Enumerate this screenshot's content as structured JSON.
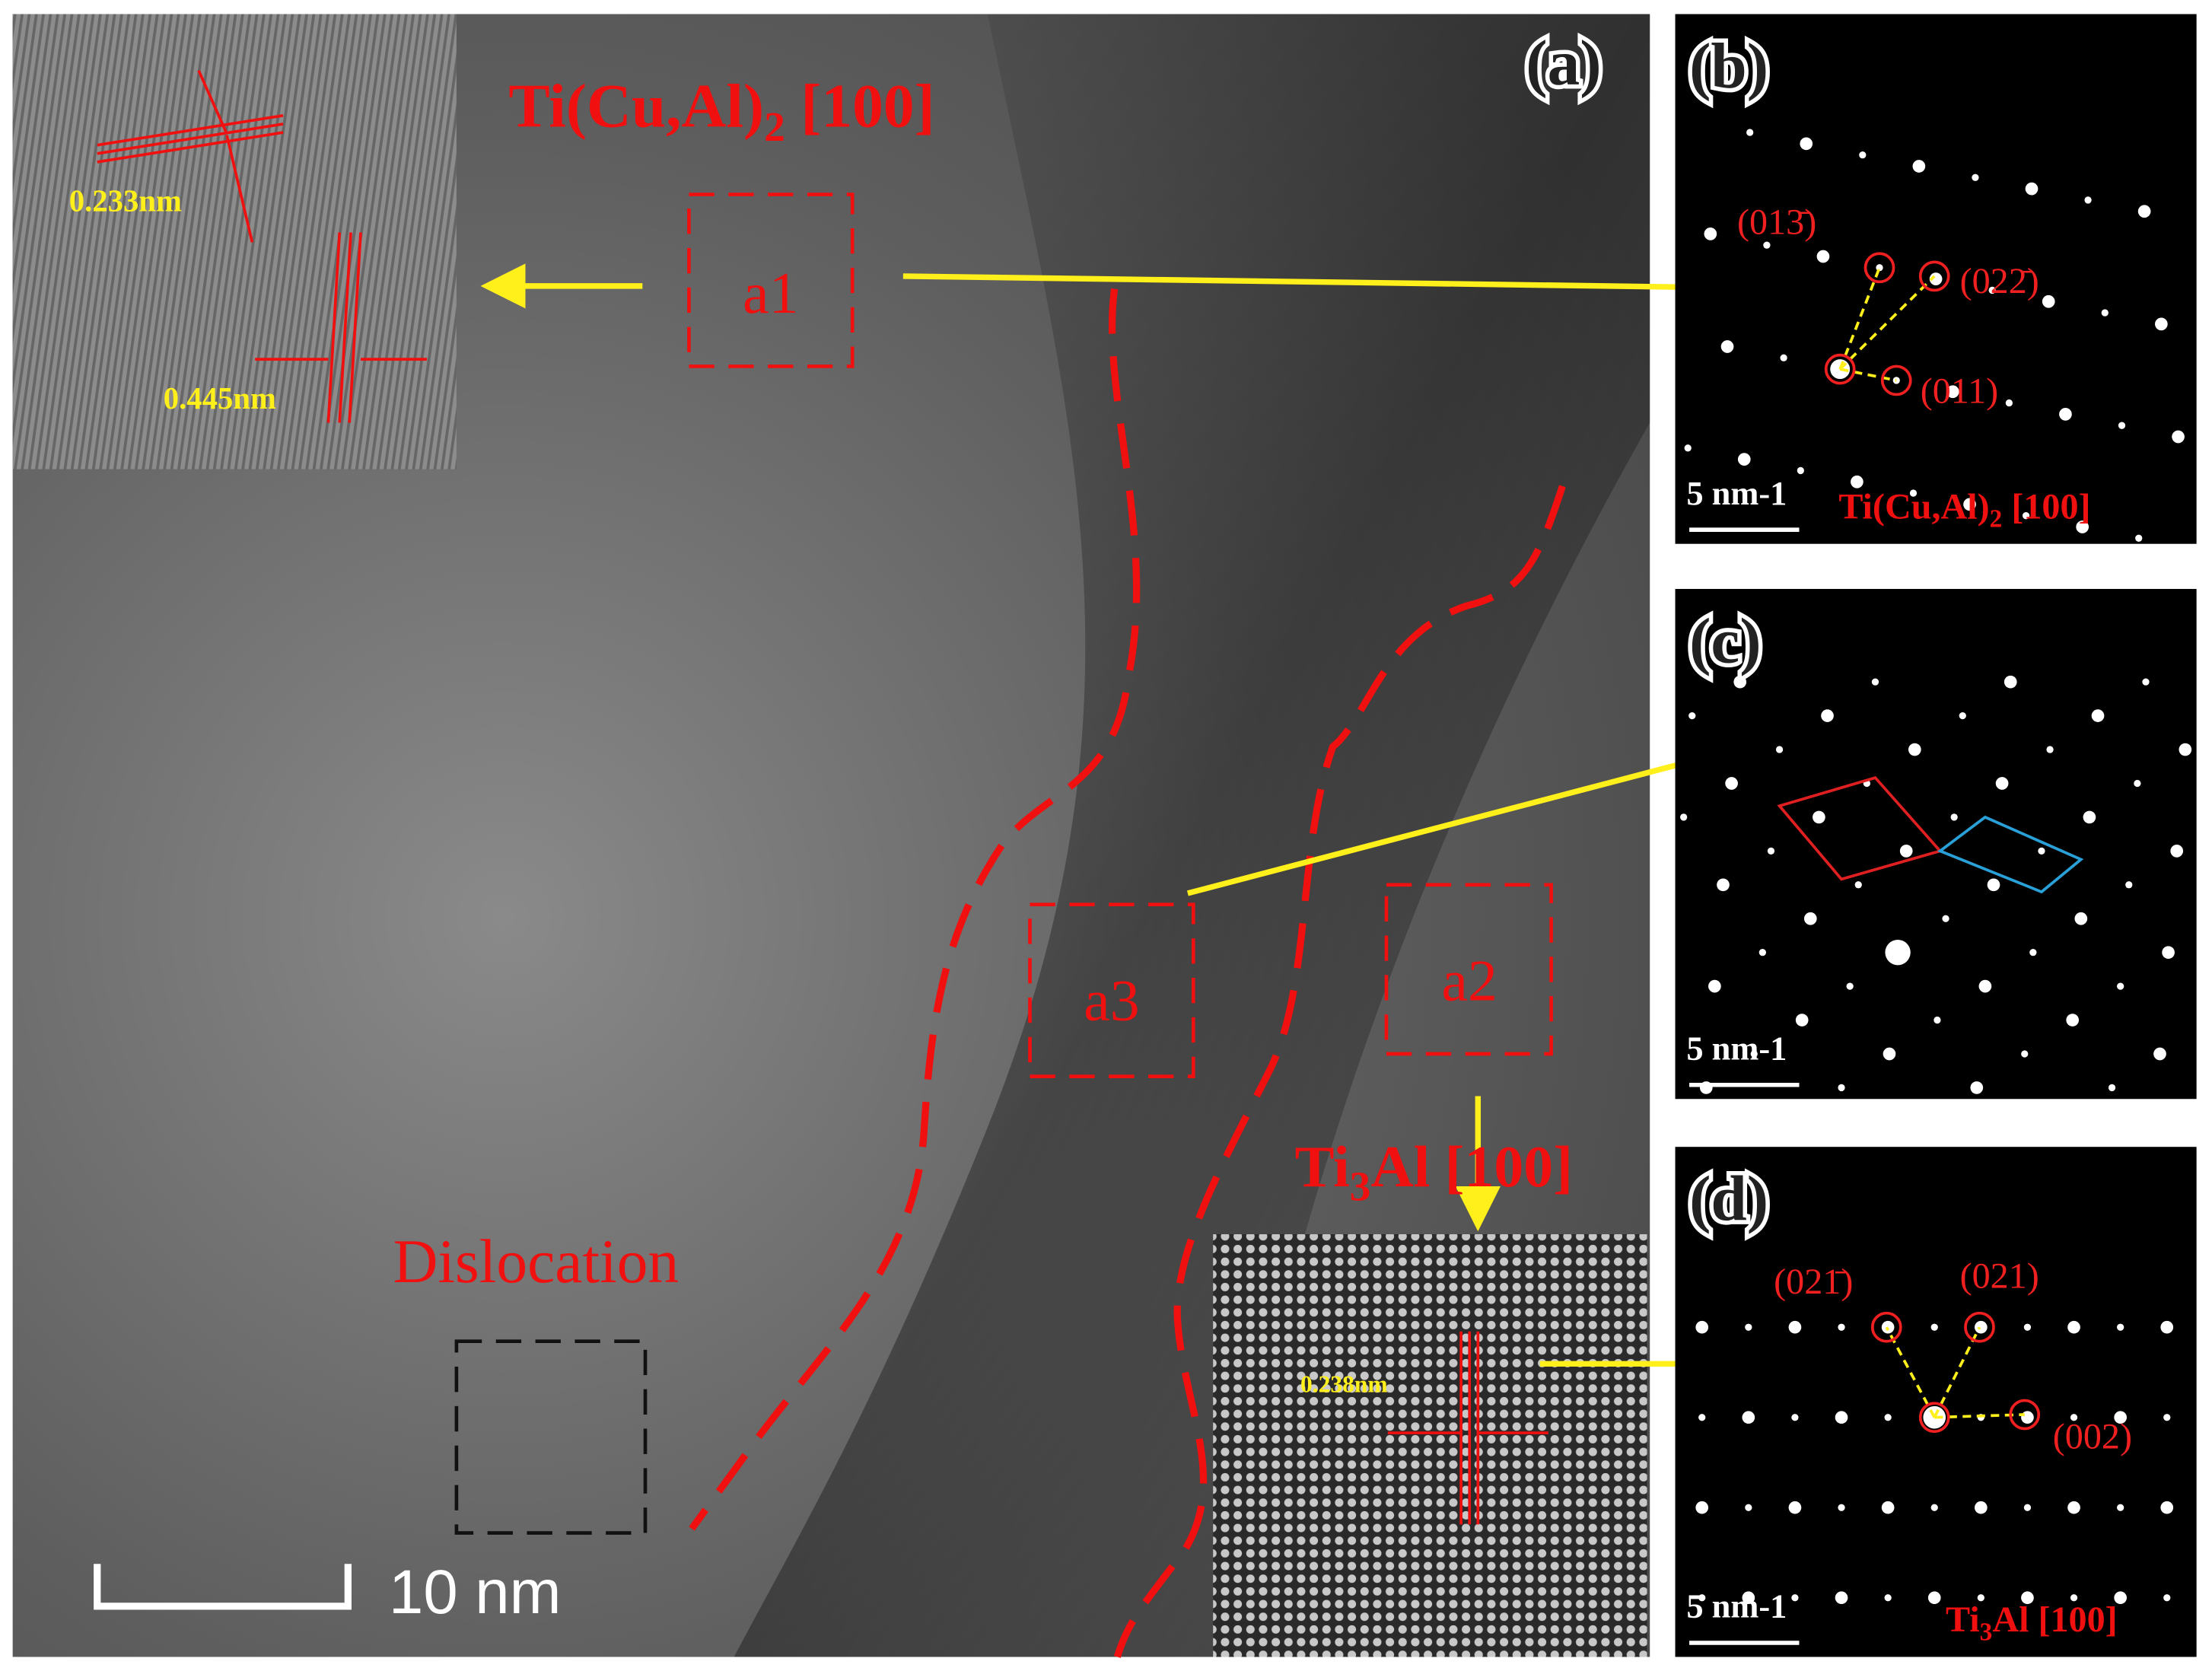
{
  "panels": {
    "a": {
      "label": "(a)",
      "phase_top": {
        "pre": "Ti(Cu,Al)",
        "sub": "2",
        "post": " [100]"
      },
      "phase_bottom": {
        "pre": "Ti",
        "sub": "3",
        "post": "Al [100]"
      },
      "regions": [
        "a1",
        "a2",
        "a3"
      ],
      "spacings": [
        "0.233nm",
        "0.445nm",
        "0.238nm"
      ],
      "feature": "Dislocation",
      "scale_bar": "10 nm"
    },
    "b": {
      "label": "(b)",
      "scale_bar": "5 nm-1",
      "phase": {
        "pre": "Ti(Cu,Al)",
        "sub": "2",
        "post": " [100]"
      },
      "spots": [
        "(013̄)",
        "(022̄)",
        "(011)"
      ]
    },
    "c": {
      "label": "(c)",
      "scale_bar": "5 nm-1"
    },
    "d": {
      "label": "(d)",
      "scale_bar": "5 nm-1",
      "phase": {
        "pre": "Ti",
        "sub": "3",
        "post": "Al [100]"
      },
      "spots": [
        "(021̄)",
        "(021)",
        "(002)"
      ]
    }
  }
}
